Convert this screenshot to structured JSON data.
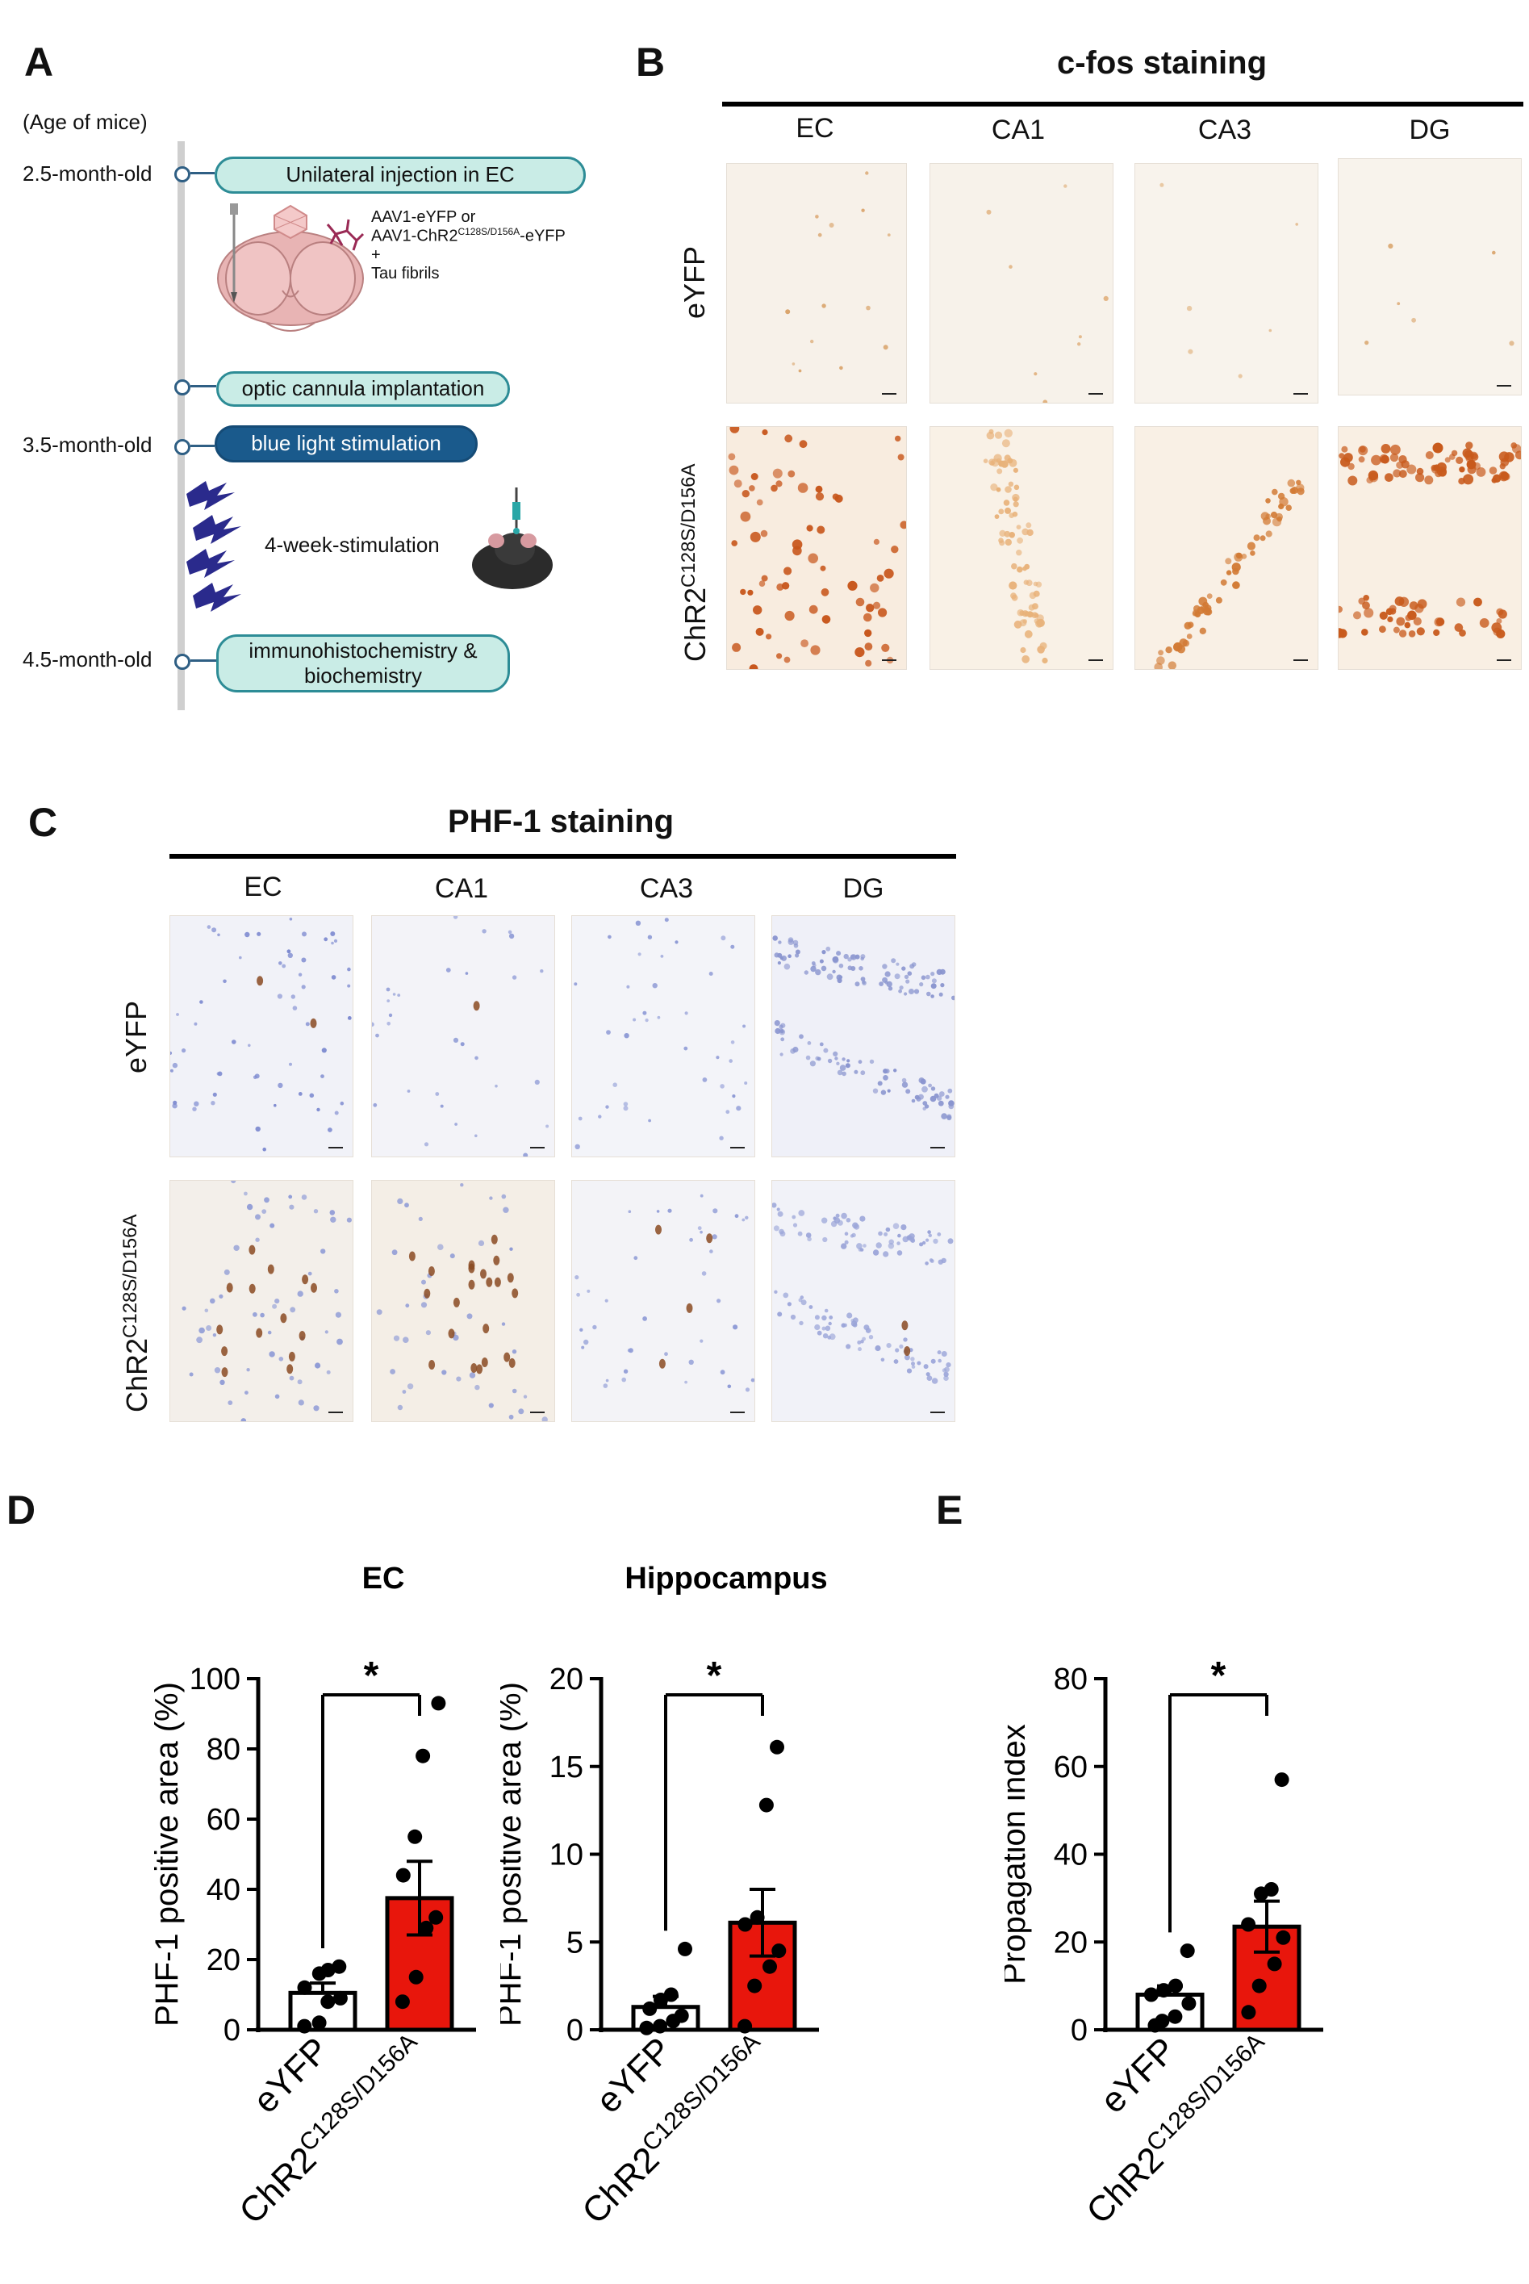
{
  "panel_labels": {
    "a": "A",
    "b": "B",
    "c": "C",
    "d": "D",
    "e": "E"
  },
  "panel_a": {
    "age_header": "(Age of mice)",
    "ages": [
      "2.5-month-old",
      "3.5-month-old",
      "4.5-month-old"
    ],
    "steps": {
      "injection": "Unilateral injection in EC",
      "cannula": "optic cannula implantation",
      "light": "blue light stimulation",
      "ihc_line1": "immunohistochemistry &",
      "ihc_line2": "biochemistry",
      "stimulation": "4-week-stimulation"
    },
    "injection_note": {
      "line1": "AAV1-eYFP or",
      "line2_prefix": "AAV1-ChR2",
      "line2_sup": "C128S/D156A",
      "line2_suffix": "-eYFP",
      "line3": "+",
      "line4": "Tau fibrils"
    },
    "colors": {
      "pill_fill": "#c9ece6",
      "pill_border": "#2d8c96",
      "pill_dark": "#1a5a8c",
      "lightning": "#2a2a8c"
    }
  },
  "panel_b": {
    "title": "c-fos staining",
    "columns": [
      "EC",
      "CA1",
      "CA3",
      "DG"
    ],
    "rows": [
      "eYFP"
    ],
    "row2_prefix": "ChR2",
    "row2_sup": "C128S/D156A"
  },
  "panel_c": {
    "title": "PHF-1 staining",
    "columns": [
      "EC",
      "CA1",
      "CA3",
      "DG"
    ],
    "rows": [
      "eYFP"
    ],
    "row2_prefix": "ChR2",
    "row2_sup": "C128S/D156A"
  },
  "chart_data": [
    {
      "type": "bar",
      "title": "EC",
      "ylabel": "PHF-1 positive area (%)",
      "ylim": [
        0,
        100
      ],
      "yticks": [
        "0",
        "20",
        "40",
        "60",
        "80",
        "100"
      ],
      "categories": [
        "eYFP",
        "ChR2C128S/D156A"
      ],
      "category_labels": [
        {
          "main": "eYFP",
          "sup": ""
        },
        {
          "main": "ChR2",
          "sup": "C128S/D156A"
        }
      ],
      "values": [
        10.5,
        37.5
      ],
      "sem": [
        2.8,
        10.5
      ],
      "points": [
        [
          1,
          2,
          8,
          9,
          12,
          16,
          17,
          18
        ],
        [
          8,
          15,
          29,
          32,
          44,
          55,
          78,
          93
        ]
      ],
      "significance": "*",
      "colors": [
        "#ffffff",
        "#e8160c"
      ]
    },
    {
      "type": "bar",
      "title": "Hippocampus",
      "ylabel": "PHF-1 positive area (%)",
      "ylim": [
        0,
        20
      ],
      "yticks": [
        "0",
        "5",
        "10",
        "15",
        "20"
      ],
      "categories": [
        "eYFP",
        "ChR2C128S/D156A"
      ],
      "category_labels": [
        {
          "main": "eYFP",
          "sup": ""
        },
        {
          "main": "ChR2",
          "sup": "C128S/D156A"
        }
      ],
      "values": [
        1.3,
        6.1
      ],
      "sem": [
        0.6,
        1.9
      ],
      "points": [
        [
          0.1,
          0.2,
          0.5,
          0.8,
          1.2,
          1.7,
          2.0,
          4.6
        ],
        [
          0.2,
          2.5,
          3.6,
          4.5,
          6.0,
          6.4,
          12.8,
          16.1
        ]
      ],
      "significance": "*",
      "colors": [
        "#ffffff",
        "#e8160c"
      ]
    },
    {
      "type": "bar",
      "title": "",
      "ylabel": "Propagation index",
      "ylim": [
        0,
        80
      ],
      "yticks": [
        "0",
        "20",
        "40",
        "60",
        "80"
      ],
      "categories": [
        "eYFP",
        "ChR2C128S/D156A"
      ],
      "category_labels": [
        {
          "main": "eYFP",
          "sup": ""
        },
        {
          "main": "ChR2",
          "sup": "C128S/D156A"
        }
      ],
      "values": [
        8,
        23.5
      ],
      "sem": [
        2.0,
        5.8
      ],
      "points": [
        [
          1,
          2,
          3,
          6,
          8,
          9,
          10,
          18
        ],
        [
          4,
          10,
          15,
          21,
          24,
          31,
          32,
          57
        ]
      ],
      "significance": "*",
      "colors": [
        "#ffffff",
        "#e8160c"
      ]
    }
  ]
}
